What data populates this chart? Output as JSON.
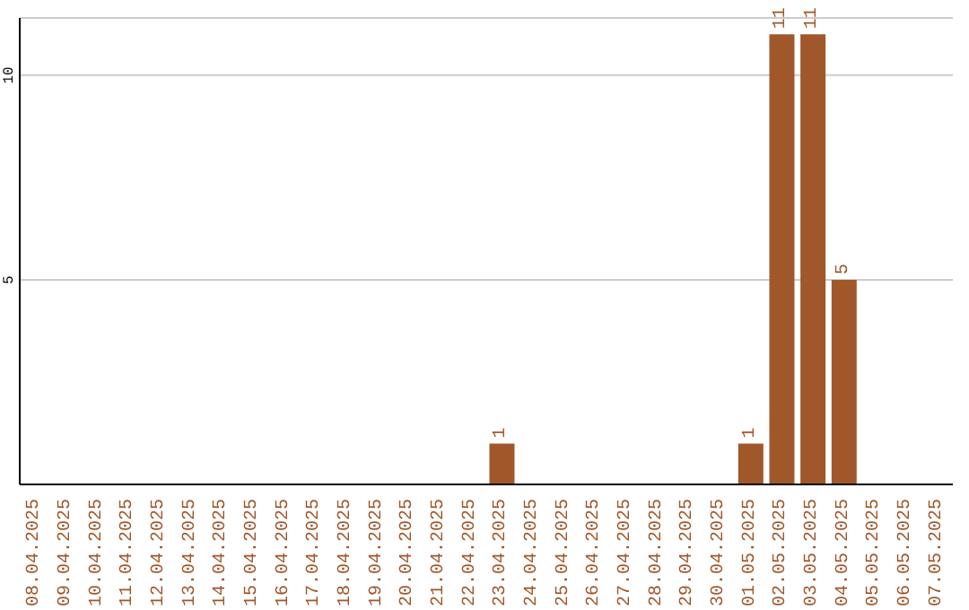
{
  "chart_data": {
    "type": "bar",
    "categories": [
      "08.04.2025",
      "09.04.2025",
      "10.04.2025",
      "11.04.2025",
      "12.04.2025",
      "13.04.2025",
      "14.04.2025",
      "15.04.2025",
      "16.04.2025",
      "17.04.2025",
      "18.04.2025",
      "19.04.2025",
      "20.04.2025",
      "21.04.2025",
      "22.04.2025",
      "23.04.2025",
      "24.04.2025",
      "25.04.2025",
      "26.04.2025",
      "27.04.2025",
      "28.04.2025",
      "29.04.2025",
      "30.04.2025",
      "01.05.2025",
      "02.05.2025",
      "03.05.2025",
      "04.05.2025",
      "05.05.2025",
      "06.05.2025",
      "07.05.2025"
    ],
    "values": [
      0,
      0,
      0,
      0,
      0,
      0,
      0,
      0,
      0,
      0,
      0,
      0,
      0,
      0,
      0,
      1,
      0,
      0,
      0,
      0,
      0,
      0,
      0,
      1,
      11,
      11,
      5,
      0,
      0,
      0
    ],
    "value_labels": [
      null,
      null,
      null,
      null,
      null,
      null,
      null,
      null,
      null,
      null,
      null,
      null,
      null,
      null,
      null,
      "1",
      null,
      null,
      null,
      null,
      null,
      null,
      null,
      "1",
      "11",
      "11",
      "5",
      null,
      null,
      null
    ],
    "color": "#a0572a",
    "ylim": [
      0,
      11.4
    ],
    "yticks": [
      5,
      10
    ],
    "grid": "y"
  }
}
